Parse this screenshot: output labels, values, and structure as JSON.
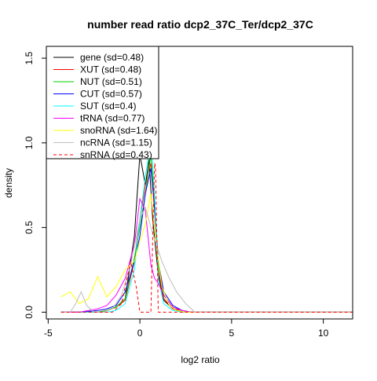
{
  "chart_data": {
    "type": "line",
    "title": "number read ratio dcp2_37C_Ter/dcp2_37C",
    "xlabel": "log2 ratio",
    "ylabel": "density",
    "xlim": [
      -5.1,
      11.6
    ],
    "ylim": [
      -0.04,
      1.57
    ],
    "x_ticks": [
      -5,
      0,
      5,
      10
    ],
    "x_tick_labels": [
      "-5",
      "0",
      "5",
      "10"
    ],
    "y_ticks": [
      0,
      0.5,
      1,
      1.5
    ],
    "y_tick_labels": [
      "0.0",
      "0.5",
      "1.0",
      "1.5"
    ],
    "grid": false,
    "legend_position": "top-left",
    "series": [
      {
        "name": "gene (sd=0.48)",
        "color": "#000000",
        "dash": false,
        "x": [
          -4.3,
          -3.8,
          -3.3,
          -2.8,
          -2.3,
          -1.8,
          -1.3,
          -0.8,
          -0.3,
          0.0,
          0.3,
          0.5,
          0.7,
          1.0,
          1.3,
          1.8,
          2.3,
          2.8,
          11.6
        ],
        "y": [
          0,
          0,
          0,
          0,
          0,
          0.01,
          0.03,
          0.08,
          0.45,
          0.93,
          0.75,
          0.9,
          0.55,
          0.22,
          0.07,
          0.02,
          0,
          0,
          0
        ]
      },
      {
        "name": "XUT (sd=0.48)",
        "color": "#ff0000",
        "dash": false,
        "x": [
          -4.3,
          -3.3,
          -2.3,
          -1.8,
          -1.3,
          -0.8,
          -0.3,
          0.0,
          0.3,
          0.6,
          0.8,
          1.0,
          1.3,
          1.8,
          2.3,
          2.8,
          11.6
        ],
        "y": [
          0,
          0,
          0,
          0.01,
          0.03,
          0.07,
          0.3,
          0.55,
          0.75,
          0.88,
          0.6,
          0.25,
          0.08,
          0.02,
          0.01,
          0,
          0
        ]
      },
      {
        "name": "NUT (sd=0.51)",
        "color": "#00cd00",
        "dash": false,
        "x": [
          -4.3,
          -3.3,
          -2.3,
          -1.8,
          -1.3,
          -0.8,
          -0.3,
          0.0,
          0.3,
          0.6,
          0.8,
          1.0,
          1.3,
          1.8,
          2.3,
          2.8,
          11.6
        ],
        "y": [
          0,
          0,
          0,
          0.01,
          0.03,
          0.08,
          0.32,
          0.5,
          0.7,
          0.93,
          0.65,
          0.28,
          0.1,
          0.03,
          0.01,
          0,
          0
        ]
      },
      {
        "name": "CUT (sd=0.57)",
        "color": "#0000ff",
        "dash": false,
        "x": [
          -4.3,
          -3.3,
          -2.3,
          -1.8,
          -1.3,
          -0.8,
          -0.3,
          0.0,
          0.3,
          0.6,
          0.8,
          1.0,
          1.3,
          1.8,
          2.3,
          2.8,
          11.6
        ],
        "y": [
          0,
          0,
          0.01,
          0.02,
          0.04,
          0.12,
          0.3,
          0.45,
          0.7,
          0.85,
          0.62,
          0.3,
          0.12,
          0.04,
          0.01,
          0,
          0
        ]
      },
      {
        "name": "SUT (sd=0.4)",
        "color": "#00ffff",
        "dash": false,
        "x": [
          -4.3,
          -3.3,
          -2.3,
          -1.8,
          -1.3,
          -0.8,
          -0.3,
          0.0,
          0.3,
          0.6,
          0.8,
          1.0,
          1.3,
          1.8,
          2.3,
          2.8,
          11.6
        ],
        "y": [
          0,
          0,
          0,
          0,
          0.01,
          0.05,
          0.25,
          0.55,
          0.8,
          1.02,
          0.7,
          0.2,
          0.05,
          0.01,
          0,
          0,
          0
        ]
      },
      {
        "name": "tRNA (sd=0.77)",
        "color": "#ff00ff",
        "dash": false,
        "x": [
          -4.3,
          -3.8,
          -3.3,
          -2.8,
          -2.3,
          -1.8,
          -1.3,
          -0.8,
          -0.3,
          0.0,
          0.3,
          0.6,
          0.8,
          1.0,
          1.3,
          1.8,
          2.3,
          2.8,
          11.6
        ],
        "y": [
          0,
          0,
          0,
          0.01,
          0.02,
          0.04,
          0.1,
          0.2,
          0.4,
          0.67,
          0.6,
          0.28,
          0.2,
          0.17,
          0.1,
          0.03,
          0.01,
          0,
          0
        ]
      },
      {
        "name": "snoRNA (sd=1.64)",
        "color": "#ffff00",
        "dash": false,
        "x": [
          -4.3,
          -3.8,
          -3.3,
          -2.8,
          -2.3,
          -1.8,
          -1.3,
          -0.8,
          -0.3,
          0.0,
          0.3,
          0.6,
          0.9,
          1.2,
          1.6,
          2.0,
          2.5,
          3.0,
          11.6
        ],
        "y": [
          0.09,
          0.12,
          0.05,
          0.08,
          0.21,
          0.09,
          0.15,
          0.25,
          0.3,
          0.42,
          0.52,
          0.7,
          0.4,
          0.15,
          0.04,
          0.01,
          0,
          0,
          0
        ]
      },
      {
        "name": "ncRNA (sd=1.15)",
        "color": "#bebebe",
        "dash": false,
        "x": [
          -4.3,
          -3.8,
          -3.5,
          -3.2,
          -2.9,
          -2.5,
          -2.0,
          -1.5,
          -1.0,
          -0.5,
          0.0,
          0.3,
          0.6,
          0.9,
          1.2,
          1.6,
          2.0,
          2.5,
          3.0,
          11.6
        ],
        "y": [
          0,
          0,
          0.05,
          0.12,
          0.04,
          0,
          0,
          0.02,
          0.1,
          0.28,
          0.55,
          0.62,
          0.5,
          0.4,
          0.3,
          0.2,
          0.12,
          0.05,
          0,
          0
        ]
      },
      {
        "name": "snRNA (sd=0.43)",
        "color": "#ff0000",
        "dash": true,
        "x": [
          -4.3,
          -3.3,
          -2.3,
          -1.5,
          -1.0,
          -0.5,
          -0.2,
          0.0,
          0.3,
          0.6,
          0.8,
          0.85,
          1.0,
          1.3,
          2.0,
          11.6
        ],
        "y": [
          0,
          0,
          0,
          0,
          0.05,
          0.3,
          0.15,
          0,
          0,
          0,
          0.88,
          0.86,
          0,
          0,
          0,
          0
        ]
      }
    ]
  }
}
